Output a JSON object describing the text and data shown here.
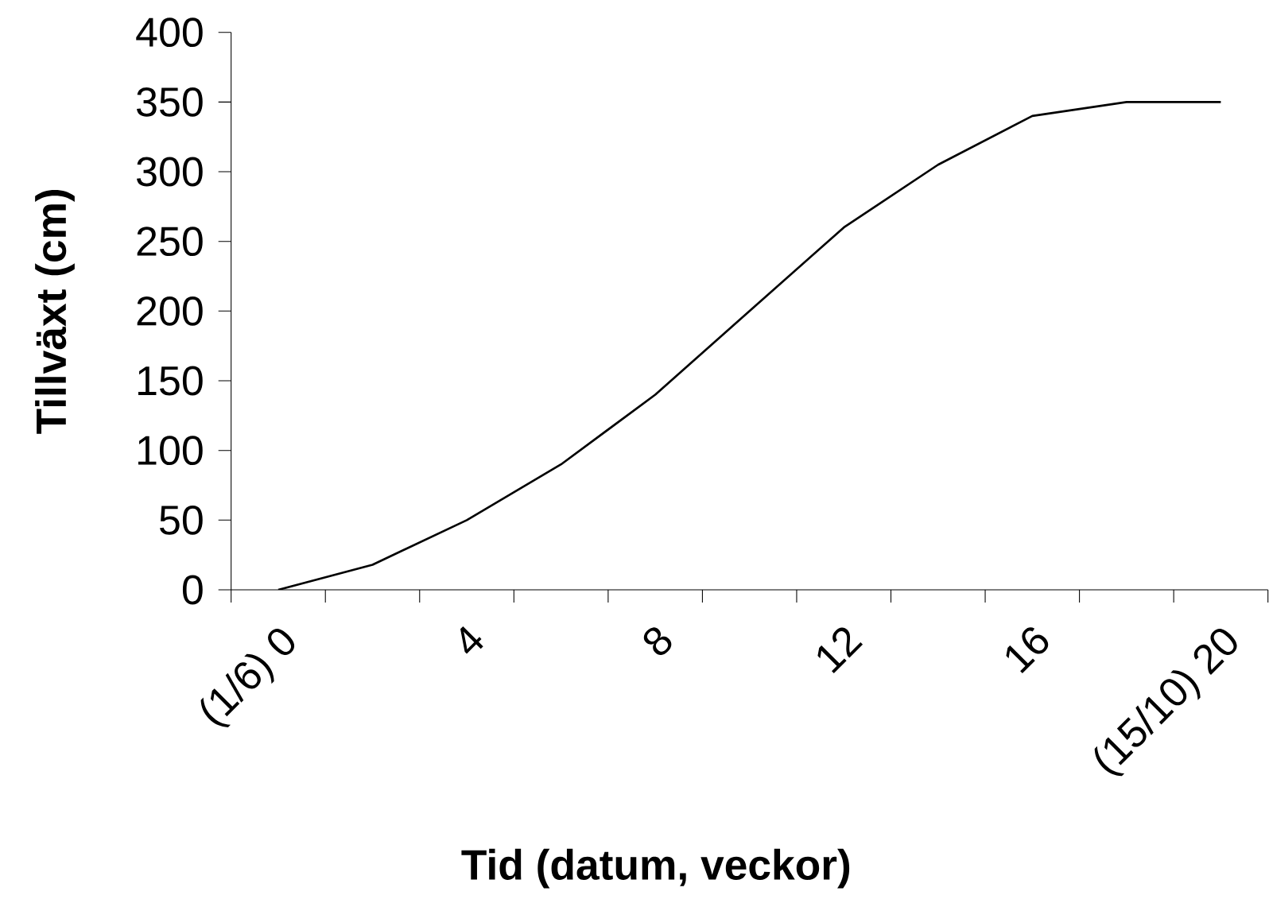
{
  "chart_data": {
    "type": "line",
    "xlabel": "Tid (datum, veckor)",
    "ylabel": "Tillväxt (cm)",
    "categories": [
      "(1/6) 0",
      null,
      "4",
      null,
      "8",
      null,
      "12",
      null,
      "16",
      null,
      "(15/10) 20"
    ],
    "series": [
      {
        "color": "#000000",
        "values": [
          0,
          18,
          50,
          90,
          140,
          200,
          260,
          305,
          340,
          350,
          350
        ]
      }
    ],
    "ylim": [
      0,
      400
    ],
    "yticks": [
      0,
      50,
      100,
      150,
      200,
      250,
      300,
      350,
      400
    ],
    "grid": false,
    "marker": "none",
    "line_style": "solid"
  }
}
